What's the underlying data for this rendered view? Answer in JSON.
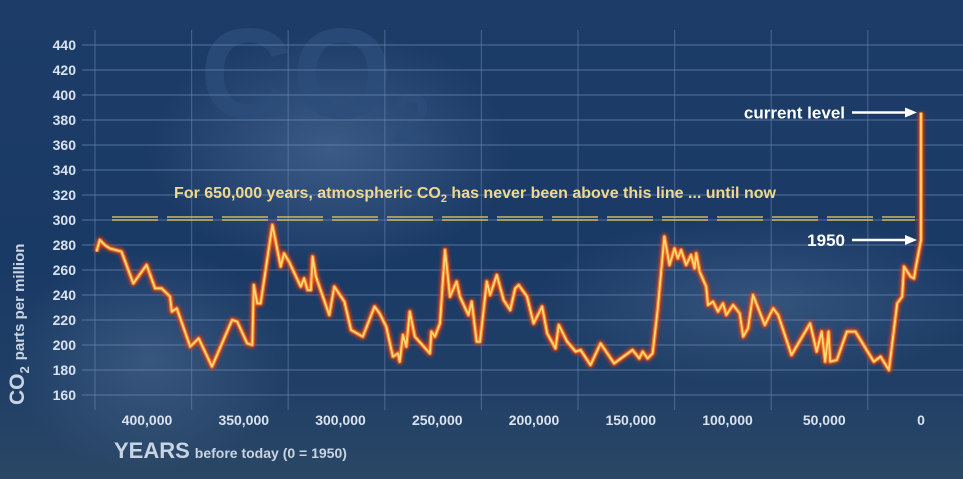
{
  "watermark": "CO2",
  "chart_data": {
    "type": "line",
    "title": "",
    "xlabel": "YEARS",
    "xlabel_sub": "before today (0 = 1950)",
    "ylabel_main": "CO",
    "ylabel_sub": "2",
    "ylabel_rest": "parts per million",
    "ylim": [
      160,
      440
    ],
    "yticks": [
      160,
      180,
      200,
      220,
      240,
      260,
      280,
      300,
      320,
      340,
      360,
      380,
      400,
      420,
      440
    ],
    "xticks": [
      {
        "value": 400000,
        "label": "400,000"
      },
      {
        "value": 350000,
        "label": "350,000"
      },
      {
        "value": 300000,
        "label": "300,000"
      },
      {
        "value": 250000,
        "label": "250,000"
      },
      {
        "value": 200000,
        "label": "200,000"
      },
      {
        "value": 150000,
        "label": "150,000"
      },
      {
        "value": 100000,
        "label": "100,000"
      },
      {
        "value": 50000,
        "label": "50,000"
      },
      {
        "value": 0,
        "label": "0"
      }
    ],
    "x_unit": "years before 1950",
    "grid": true,
    "threshold": {
      "value": 300,
      "label_pre": "For 650,000 years, atmospheric CO",
      "label_sub": "2",
      "label_post": " has never been above this line ... until now"
    },
    "annotations": [
      {
        "label": "current level",
        "x": 0,
        "y": 386
      },
      {
        "label": "1950",
        "x": 0,
        "y": 284
      }
    ],
    "series": [
      {
        "name": "CO2 (ppm)",
        "color": "#f5b040",
        "x": [
          426100,
          424400,
          421800,
          419200,
          413200,
          407100,
          400200,
          395800,
          392400,
          388100,
          387200,
          384600,
          377700,
          373300,
          366400,
          356000,
          353400,
          348200,
          345600,
          344800,
          343000,
          341300,
          335200,
          330900,
          329200,
          326600,
          320500,
          318800,
          317000,
          315300,
          314400,
          312700,
          305800,
          303200,
          298000,
          294500,
          288500,
          282400,
          279800,
          276400,
          272900,
          270300,
          269400,
          267700,
          266000,
          264200,
          261600,
          253800,
          253000,
          251200,
          248600,
          246000,
          243400,
          240000,
          238300,
          233900,
          232200,
          229600,
          227900,
          224400,
          222700,
          219200,
          215700,
          212300,
          209700,
          207900,
          203600,
          200200,
          195800,
          193200,
          188900,
          187200,
          182900,
          178500,
          175900,
          170800,
          165600,
          158600,
          149100,
          145600,
          143900,
          141300,
          138700,
          136100,
          132600,
          130000,
          127400,
          125700,
          124000,
          121400,
          118800,
          117000,
          116200,
          114400,
          111000,
          110100,
          107500,
          104900,
          102300,
          100600,
          97100,
          93700,
          91900,
          89400,
          86800,
          80700,
          76400,
          73800,
          66900,
          57300,
          53900,
          51300,
          49500,
          47800,
          46900,
          43500,
          38300,
          33900,
          24400,
          20900,
          16600,
          12300,
          9700,
          8800,
          5400,
          3600,
          2800,
          1000,
          0,
          0
        ],
        "y": [
          274.7,
          284,
          280,
          277.3,
          274.7,
          249.3,
          264,
          245.3,
          245.3,
          238.7,
          226.7,
          229.3,
          198.7,
          205.3,
          182.7,
          220,
          218.7,
          201.3,
          200,
          248,
          233.3,
          233.3,
          296,
          262.7,
          273.3,
          266.7,
          246.7,
          253.3,
          244,
          244,
          270.7,
          254.7,
          224,
          246.7,
          234.7,
          212,
          206.7,
          230.7,
          225.3,
          214.7,
          190.7,
          193.3,
          186.7,
          208,
          198.7,
          226.7,
          206.7,
          193.3,
          210.7,
          206.7,
          217.3,
          276,
          238.7,
          250.7,
          238.7,
          224,
          234.7,
          202.7,
          202.7,
          250.7,
          240,
          256,
          236,
          228,
          245.3,
          248,
          238.7,
          217.3,
          230.7,
          209.3,
          197.3,
          216,
          202.7,
          194.7,
          196,
          184,
          201.3,
          185.3,
          196,
          189.3,
          194.7,
          189.3,
          193.3,
          228,
          286.7,
          264,
          277.3,
          269.3,
          276,
          264,
          272,
          261.3,
          273.3,
          258.7,
          246.7,
          232,
          234.7,
          226.7,
          233.3,
          224,
          232,
          225.3,
          206.7,
          213.3,
          240,
          216,
          229.3,
          224,
          192,
          217.3,
          194.7,
          210.7,
          186.7,
          210.7,
          186.7,
          188,
          210.7,
          210.7,
          186.7,
          190.7,
          180,
          233.3,
          238.7,
          262.7,
          254.7,
          253.3,
          261.3,
          276,
          284,
          386
        ]
      }
    ]
  }
}
